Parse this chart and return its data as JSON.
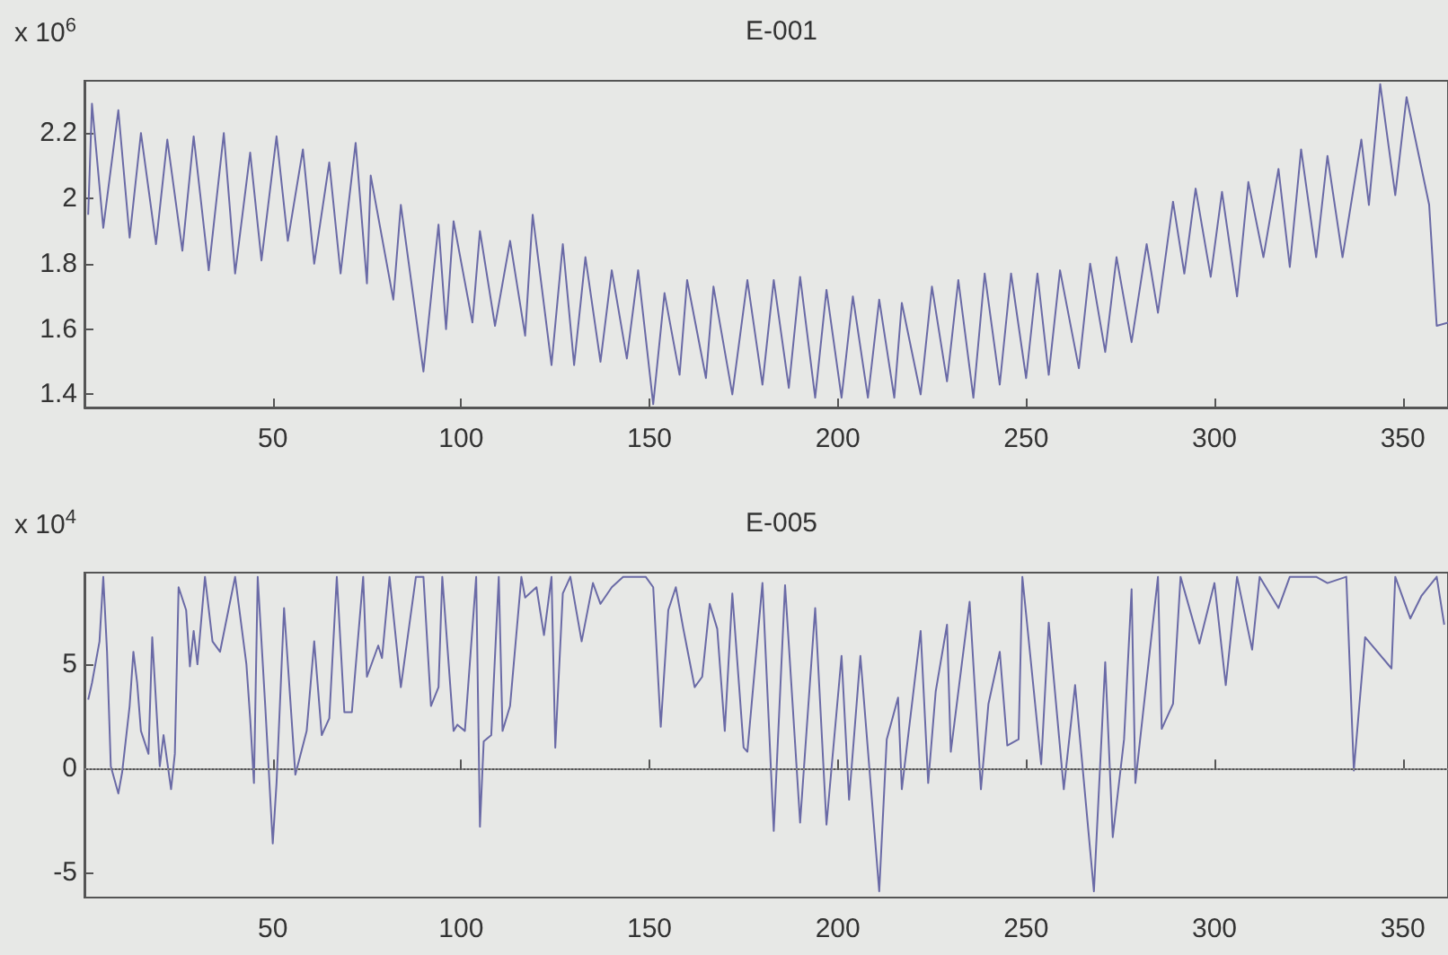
{
  "chart_data": [
    {
      "type": "line",
      "title": "E-001",
      "annotations": [
        "x 10$^{6}$"
      ],
      "color": "#6a6aa6",
      "xlim": [
        0,
        362
      ],
      "xticks": [
        50,
        100,
        150,
        200,
        250,
        300,
        350
      ],
      "ylim": [
        1.36,
        2.36
      ],
      "yticks": [
        1.4,
        1.6,
        1.8,
        2,
        2.2
      ],
      "x": [
        1,
        2,
        5,
        9,
        12,
        15,
        19,
        22,
        26,
        29,
        33,
        37,
        40,
        44,
        47,
        51,
        54,
        58,
        61,
        65,
        68,
        72,
        75,
        76,
        82,
        84,
        90,
        94,
        96,
        98,
        103,
        105,
        109,
        113,
        117,
        119,
        124,
        127,
        130,
        133,
        137,
        140,
        144,
        147,
        151,
        154,
        158,
        160,
        165,
        167,
        172,
        176,
        180,
        183,
        187,
        190,
        194,
        197,
        201,
        204,
        208,
        211,
        215,
        217,
        222,
        225,
        229,
        232,
        236,
        239,
        243,
        246,
        250,
        253,
        256,
        259,
        264,
        267,
        271,
        274,
        278,
        282,
        285,
        289,
        292,
        295,
        299,
        302,
        306,
        309,
        313,
        317,
        320,
        323,
        327,
        330,
        334,
        339,
        341,
        344,
        348,
        351,
        357,
        359,
        362
      ],
      "values": [
        1.95,
        2.29,
        1.91,
        2.27,
        1.88,
        2.2,
        1.86,
        2.18,
        1.84,
        2.19,
        1.78,
        2.2,
        1.77,
        2.14,
        1.81,
        2.19,
        1.87,
        2.15,
        1.8,
        2.11,
        1.77,
        2.17,
        1.74,
        2.07,
        1.69,
        1.98,
        1.47,
        1.92,
        1.6,
        1.93,
        1.62,
        1.9,
        1.61,
        1.87,
        1.58,
        1.95,
        1.49,
        1.86,
        1.49,
        1.82,
        1.5,
        1.78,
        1.51,
        1.78,
        1.37,
        1.71,
        1.46,
        1.75,
        1.45,
        1.73,
        1.4,
        1.75,
        1.43,
        1.75,
        1.42,
        1.76,
        1.39,
        1.72,
        1.39,
        1.7,
        1.39,
        1.69,
        1.39,
        1.68,
        1.4,
        1.73,
        1.44,
        1.75,
        1.39,
        1.77,
        1.43,
        1.77,
        1.45,
        1.77,
        1.46,
        1.78,
        1.48,
        1.8,
        1.53,
        1.82,
        1.56,
        1.86,
        1.65,
        1.99,
        1.77,
        2.03,
        1.76,
        2.02,
        1.7,
        2.05,
        1.82,
        2.09,
        1.79,
        2.15,
        1.82,
        2.13,
        1.82,
        2.18,
        1.98,
        2.35,
        2.01,
        2.31,
        1.98,
        1.61,
        1.62
      ]
    },
    {
      "type": "line",
      "title": "E-005",
      "annotations": [
        "x 10$^{4}$"
      ],
      "color": "#6a6aa6",
      "xlim": [
        0,
        362
      ],
      "xticks": [
        50,
        100,
        150,
        200,
        250,
        300,
        350
      ],
      "ylim": [
        -6.2,
        9.4
      ],
      "yticks": [
        -5,
        0,
        5
      ],
      "ref_lines": [
        {
          "axis": "y",
          "value": 0,
          "line_style": "dotted",
          "color": "#888888"
        }
      ],
      "x": [
        1,
        2,
        4,
        5,
        6,
        7,
        9,
        10,
        12,
        13,
        14,
        15,
        17,
        18,
        20,
        21,
        23,
        24,
        25,
        27,
        28,
        29,
        30,
        32,
        34,
        36,
        40,
        43,
        44,
        45,
        46,
        48,
        50,
        51,
        53,
        56,
        59,
        61,
        63,
        65,
        67,
        69,
        71,
        74,
        75,
        78,
        79,
        81,
        84,
        88,
        90,
        92,
        94,
        95,
        98,
        99,
        101,
        104,
        105,
        106,
        108,
        110,
        111,
        113,
        116,
        117,
        120,
        122,
        124,
        125,
        127,
        129,
        132,
        135,
        137,
        140,
        143,
        149,
        151,
        153,
        155,
        157,
        159,
        162,
        164,
        166,
        168,
        170,
        172,
        175,
        176,
        180,
        183,
        186,
        190,
        194,
        197,
        201,
        203,
        206,
        211,
        213,
        216,
        217,
        222,
        224,
        226,
        229,
        230,
        235,
        238,
        240,
        243,
        245,
        248,
        249,
        254,
        256,
        260,
        263,
        268,
        271,
        273,
        276,
        278,
        279,
        285,
        286,
        289,
        291,
        296,
        300,
        303,
        306,
        310,
        312,
        317,
        320,
        327,
        330,
        335,
        337,
        340,
        347,
        348,
        352,
        355,
        359,
        361
      ],
      "values": [
        3.3,
        4.1,
        6.1,
        9.2,
        5.6,
        0.1,
        -1.2,
        -0.2,
        3,
        5.6,
        4.1,
        1.8,
        0.7,
        6.3,
        0.1,
        1.6,
        -1,
        0.7,
        8.7,
        7.6,
        4.9,
        6.6,
        5,
        9.2,
        6.1,
        5.6,
        9.2,
        5,
        2.4,
        -0.7,
        9.2,
        3,
        -3.6,
        -0.7,
        7.7,
        -0.3,
        1.8,
        6.1,
        1.6,
        2.4,
        9.2,
        2.7,
        2.7,
        9.2,
        4.4,
        5.9,
        5.3,
        9.2,
        3.9,
        9.2,
        9.2,
        3,
        3.9,
        9.2,
        1.8,
        2.1,
        1.8,
        9.2,
        -2.8,
        1.3,
        1.6,
        9.2,
        1.8,
        3,
        9.2,
        8.2,
        8.7,
        6.4,
        9.2,
        1,
        8.4,
        9.2,
        6.1,
        8.9,
        7.9,
        8.7,
        9.2,
        9.2,
        8.7,
        2,
        7.6,
        8.7,
        6.7,
        3.9,
        4.4,
        7.9,
        6.7,
        1.8,
        8.4,
        1,
        0.8,
        8.9,
        -3,
        8.8,
        -2.6,
        7.7,
        -2.7,
        5.4,
        -1.5,
        5.4,
        -5.9,
        1.4,
        3.4,
        -1,
        6.6,
        -0.7,
        3.7,
        6.9,
        0.8,
        8,
        -1,
        3.1,
        5.6,
        1.1,
        1.4,
        9.2,
        0.2,
        7,
        -1,
        4,
        -5.9,
        5.1,
        -3.3,
        1.4,
        8.6,
        -0.7,
        9.2,
        1.9,
        3.1,
        9.2,
        6,
        8.9,
        4,
        9.2,
        5.7,
        9.2,
        7.7,
        9.2,
        9.2,
        8.9,
        9.2,
        -0.1,
        6.3,
        4.8,
        9.2,
        7.2,
        8.3,
        9.2,
        6.9
      ]
    }
  ]
}
